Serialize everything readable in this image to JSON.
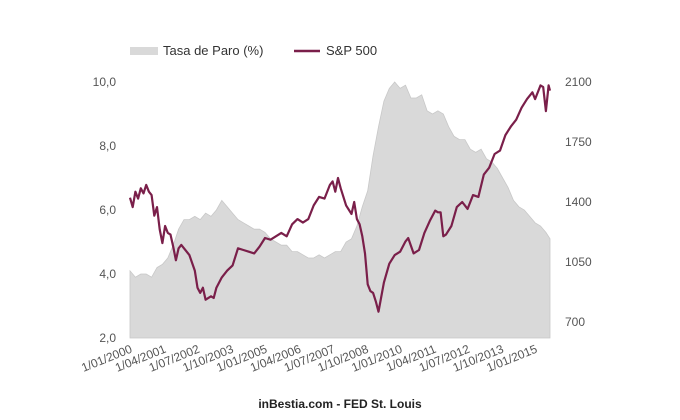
{
  "chart_data": {
    "type": "line",
    "title": "",
    "source_caption": "inBestia.com - FED St. Louis",
    "legend": {
      "position": "top-left",
      "entries": [
        {
          "label": "Tasa de Paro (%)",
          "kind": "area",
          "color": "#d9d9d9"
        },
        {
          "label": "S&P 500",
          "kind": "line",
          "color": "#7a1f4a"
        }
      ]
    },
    "x_axis": {
      "range": [
        2000.0,
        2015.55
      ],
      "tick_labels": [
        "1/01/2000",
        "1/04/2001",
        "1/07/2002",
        "1/10/2003",
        "1/01/2005",
        "1/04/2006",
        "1/07/2007",
        "1/10/2008",
        "1/01/2010",
        "1/04/2011",
        "1/07/2012",
        "1/10/2013",
        "1/01/2015"
      ],
      "tick_values": [
        2000.0,
        2001.25,
        2002.5,
        2003.75,
        2005.0,
        2006.25,
        2007.5,
        2008.75,
        2010.0,
        2011.25,
        2012.5,
        2013.75,
        2015.0
      ]
    },
    "y_left": {
      "label": "Tasa de Paro (%)",
      "range": [
        2,
        10
      ],
      "tick_labels": [
        "2,0",
        "4,0",
        "6,0",
        "8,0",
        "10,0"
      ],
      "tick_values": [
        2,
        4,
        6,
        8,
        10
      ]
    },
    "y_right": {
      "label": "S&P 500",
      "range": [
        700,
        2100
      ],
      "tick_labels": [
        "700",
        "1050",
        "1400",
        "1750",
        "2100"
      ],
      "tick_values": [
        700,
        1050,
        1400,
        1750,
        2100
      ]
    },
    "grid": false,
    "series": [
      {
        "name": "Tasa de Paro (%)",
        "type": "area",
        "axis": "left",
        "color": "#d9d9d9",
        "x": [
          2000.0,
          2000.2,
          2000.4,
          2000.6,
          2000.8,
          2001.0,
          2001.2,
          2001.4,
          2001.6,
          2001.8,
          2002.0,
          2002.2,
          2002.4,
          2002.6,
          2002.8,
          2003.0,
          2003.2,
          2003.4,
          2003.6,
          2003.8,
          2004.0,
          2004.2,
          2004.4,
          2004.6,
          2004.8,
          2005.0,
          2005.2,
          2005.4,
          2005.6,
          2005.8,
          2006.0,
          2006.2,
          2006.4,
          2006.6,
          2006.8,
          2007.0,
          2007.2,
          2007.4,
          2007.6,
          2007.8,
          2008.0,
          2008.2,
          2008.4,
          2008.6,
          2008.8,
          2009.0,
          2009.2,
          2009.4,
          2009.6,
          2009.8,
          2010.0,
          2010.2,
          2010.4,
          2010.6,
          2010.8,
          2011.0,
          2011.2,
          2011.4,
          2011.6,
          2011.8,
          2012.0,
          2012.2,
          2012.4,
          2012.6,
          2012.8,
          2013.0,
          2013.2,
          2013.4,
          2013.6,
          2013.8,
          2014.0,
          2014.2,
          2014.4,
          2014.6,
          2014.8,
          2015.0,
          2015.2,
          2015.4,
          2015.55
        ],
        "values": [
          4.1,
          3.9,
          4.0,
          4.0,
          3.9,
          4.2,
          4.3,
          4.5,
          4.9,
          5.4,
          5.7,
          5.7,
          5.8,
          5.7,
          5.9,
          5.8,
          6.0,
          6.3,
          6.1,
          5.9,
          5.7,
          5.6,
          5.5,
          5.4,
          5.4,
          5.3,
          5.1,
          5.0,
          4.9,
          4.9,
          4.7,
          4.7,
          4.6,
          4.5,
          4.5,
          4.6,
          4.5,
          4.6,
          4.7,
          4.7,
          5.0,
          5.1,
          5.5,
          6.1,
          6.6,
          7.7,
          8.6,
          9.4,
          9.8,
          10.0,
          9.8,
          9.9,
          9.5,
          9.5,
          9.6,
          9.1,
          9.0,
          9.1,
          9.0,
          8.6,
          8.3,
          8.2,
          8.2,
          7.9,
          7.8,
          7.9,
          7.6,
          7.5,
          7.3,
          7.0,
          6.7,
          6.3,
          6.1,
          6.0,
          5.8,
          5.6,
          5.5,
          5.3,
          5.1
        ]
      },
      {
        "name": "S&P 500",
        "type": "line",
        "axis": "right",
        "color": "#7a1f4a",
        "x": [
          2000.0,
          2000.1,
          2000.2,
          2000.3,
          2000.4,
          2000.5,
          2000.6,
          2000.7,
          2000.8,
          2000.9,
          2001.0,
          2001.1,
          2001.2,
          2001.3,
          2001.4,
          2001.5,
          2001.6,
          2001.7,
          2001.8,
          2001.9,
          2002.0,
          2002.2,
          2002.4,
          2002.5,
          2002.6,
          2002.7,
          2002.8,
          2003.0,
          2003.1,
          2003.2,
          2003.4,
          2003.6,
          2003.8,
          2004.0,
          2004.2,
          2004.4,
          2004.6,
          2004.8,
          2005.0,
          2005.2,
          2005.4,
          2005.6,
          2005.8,
          2006.0,
          2006.2,
          2006.4,
          2006.6,
          2006.8,
          2007.0,
          2007.2,
          2007.4,
          2007.5,
          2007.6,
          2007.7,
          2007.8,
          2008.0,
          2008.2,
          2008.3,
          2008.4,
          2008.5,
          2008.6,
          2008.7,
          2008.8,
          2008.9,
          2009.0,
          2009.1,
          2009.2,
          2009.4,
          2009.6,
          2009.8,
          2010.0,
          2010.2,
          2010.3,
          2010.5,
          2010.7,
          2010.9,
          2011.1,
          2011.3,
          2011.4,
          2011.5,
          2011.6,
          2011.7,
          2011.9,
          2012.1,
          2012.3,
          2012.5,
          2012.7,
          2012.9,
          2013.1,
          2013.3,
          2013.5,
          2013.7,
          2013.9,
          2014.1,
          2014.3,
          2014.5,
          2014.7,
          2014.9,
          2015.0,
          2015.2,
          2015.3,
          2015.4,
          2015.5,
          2015.55
        ],
        "values": [
          1425,
          1370,
          1460,
          1420,
          1480,
          1450,
          1500,
          1460,
          1440,
          1320,
          1370,
          1240,
          1160,
          1260,
          1220,
          1210,
          1140,
          1060,
          1130,
          1150,
          1130,
          1090,
          1000,
          900,
          870,
          900,
          830,
          850,
          840,
          900,
          960,
          1000,
          1030,
          1130,
          1120,
          1110,
          1100,
          1140,
          1190,
          1180,
          1200,
          1220,
          1200,
          1270,
          1300,
          1280,
          1300,
          1380,
          1430,
          1420,
          1500,
          1520,
          1460,
          1540,
          1480,
          1380,
          1330,
          1400,
          1300,
          1270,
          1200,
          1100,
          920,
          880,
          870,
          820,
          760,
          930,
          1040,
          1090,
          1110,
          1170,
          1190,
          1100,
          1120,
          1220,
          1290,
          1350,
          1340,
          1340,
          1200,
          1210,
          1260,
          1370,
          1400,
          1360,
          1440,
          1430,
          1560,
          1600,
          1680,
          1700,
          1790,
          1840,
          1880,
          1950,
          2000,
          2040,
          2000,
          2080,
          2070,
          1930,
          2080,
          2050
        ]
      }
    ]
  }
}
